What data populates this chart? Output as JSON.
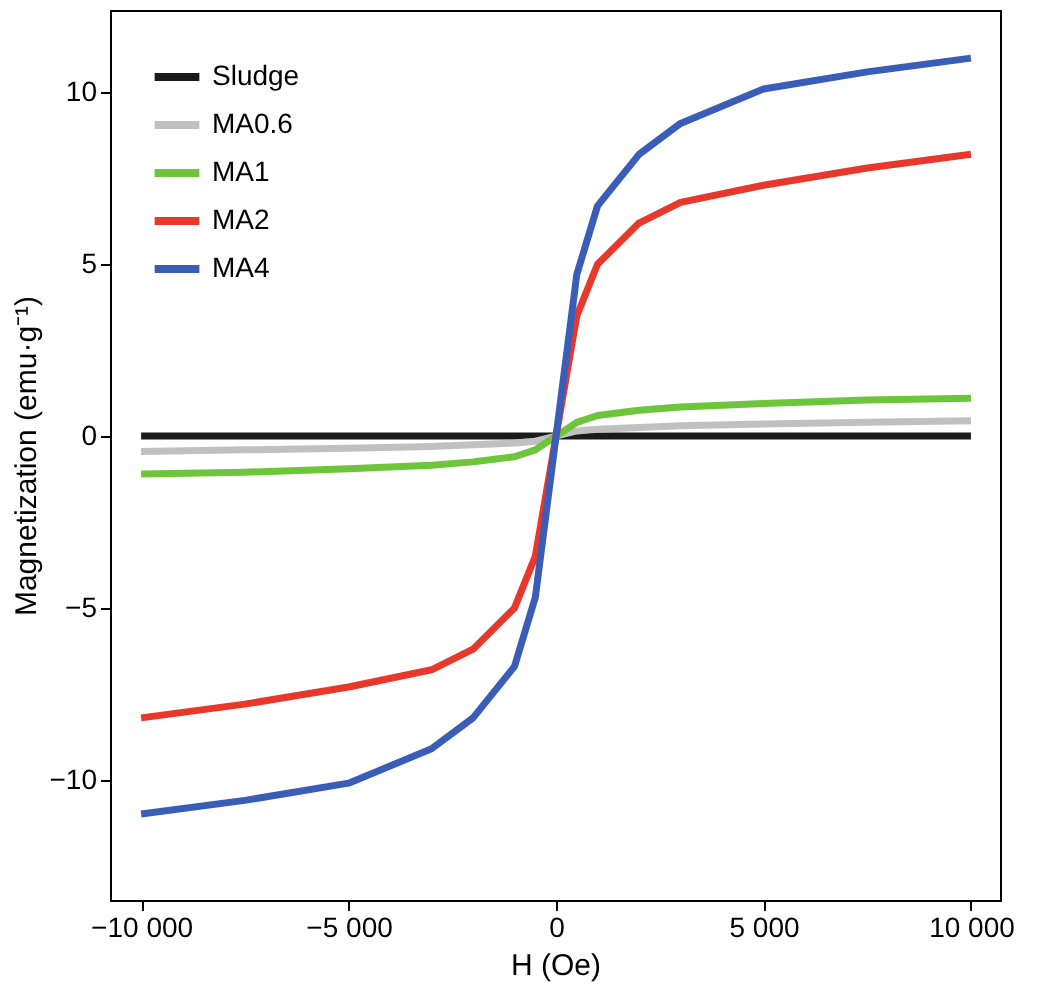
{
  "chart_data": {
    "type": "line",
    "xlabel": "H (Oe)",
    "ylabel": "Magnetization (emu·g⁻¹)",
    "x": [
      -10000,
      -7500,
      -5000,
      -3000,
      -2000,
      -1000,
      -500,
      0,
      500,
      1000,
      2000,
      3000,
      5000,
      7500,
      10000
    ],
    "series": [
      {
        "name": "Sludge",
        "color": "#1a1a1a",
        "values": [
          0,
          0,
          0,
          0,
          0,
          0,
          0,
          0,
          0,
          0,
          0,
          0,
          0,
          0,
          0
        ]
      },
      {
        "name": "MA0.6",
        "color": "#c0c0c0",
        "values": [
          -0.45,
          -0.4,
          -0.35,
          -0.3,
          -0.25,
          -0.2,
          -0.15,
          0,
          0.15,
          0.2,
          0.25,
          0.3,
          0.35,
          0.4,
          0.45
        ]
      },
      {
        "name": "MA1",
        "color": "#6cc53a",
        "values": [
          -1.1,
          -1.05,
          -0.95,
          -0.85,
          -0.75,
          -0.6,
          -0.4,
          0,
          0.4,
          0.6,
          0.75,
          0.85,
          0.95,
          1.05,
          1.1
        ]
      },
      {
        "name": "MA2",
        "color": "#e8382c",
        "values": [
          -8.2,
          -7.8,
          -7.3,
          -6.8,
          -6.2,
          -5.0,
          -3.5,
          0,
          3.5,
          5.0,
          6.2,
          6.8,
          7.3,
          7.8,
          8.2
        ]
      },
      {
        "name": "MA4",
        "color": "#3a5db8",
        "values": [
          -11.0,
          -10.6,
          -10.1,
          -9.1,
          -8.2,
          -6.7,
          -4.7,
          0,
          4.7,
          6.7,
          8.2,
          9.1,
          10.1,
          10.6,
          11.0
        ]
      }
    ],
    "xlim": [
      -10750,
      10700
    ],
    "ylim": [
      -13.5,
      12.4
    ],
    "xticks": [
      {
        "value": -10000,
        "label": "−10 000"
      },
      {
        "value": -5000,
        "label": "−5 000"
      },
      0,
      {
        "value": 5000,
        "label": "5 000"
      },
      {
        "value": 10000,
        "label": "10 000"
      }
    ],
    "yticks": [
      {
        "value": -10,
        "label": "−10"
      },
      {
        "value": -5,
        "label": "−5"
      },
      0,
      5,
      10
    ],
    "grid": false,
    "legend": "top left",
    "marker": "none",
    "line_style": "solid"
  }
}
